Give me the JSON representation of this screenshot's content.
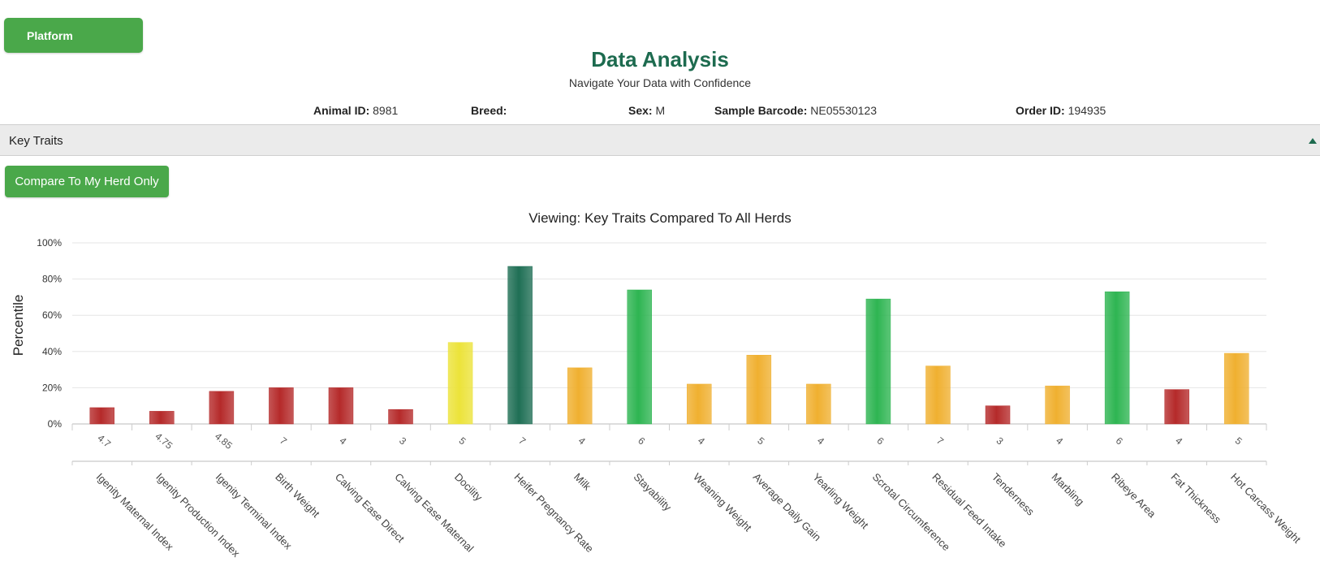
{
  "header": {
    "platform_label": "Platform",
    "title": "Data Analysis",
    "subtitle": "Navigate Your Data with Confidence"
  },
  "animal_info": {
    "animal_id_label": "Animal ID:",
    "animal_id": "8981",
    "breed_label": "Breed:",
    "breed": "",
    "sex_label": "Sex:",
    "sex": "M",
    "barcode_label": "Sample Barcode:",
    "barcode": "NE05530123",
    "order_id_label": "Order ID:",
    "order_id": "194935"
  },
  "section": {
    "label": "Key Traits",
    "collapse_icon": "triangle-up-icon"
  },
  "compare_button": "Compare To My Herd Only",
  "colors": {
    "brand_green": "#4aa84a",
    "title_green": "#1d6b4f",
    "bar_red": "#b52a2a",
    "bar_orange": "#f0b030",
    "bar_yellow": "#ece33a",
    "bar_green": "#2eb552",
    "bar_dark_green": "#1f6f55"
  },
  "chart_data": {
    "type": "bar",
    "title": "Viewing: Key Traits Compared To All Herds",
    "ylabel": "Percentile",
    "ylim": [
      0,
      100
    ],
    "yticks": [
      "0%",
      "20%",
      "40%",
      "60%",
      "80%",
      "100%"
    ],
    "grid": true,
    "categories": [
      "Igenity Maternal Index",
      "Igenity Production Index",
      "Igenity Terminal Index",
      "Birth Weight",
      "Calving Ease Direct",
      "Calving Ease Maternal",
      "Docility",
      "Heifer Pregnancy Rate",
      "Milk",
      "Stayability",
      "Weaning Weight",
      "Average Daily Gain",
      "Yearling Weight",
      "Scrotal Circumference",
      "Residual Feed Intake",
      "Tenderness",
      "Marbling",
      "Ribeye Area",
      "Fat Thickness",
      "Hot Carcass Weight"
    ],
    "scores": [
      "4.7",
      "4.75",
      "4.85",
      "7",
      "4",
      "3",
      "5",
      "7",
      "4",
      "6",
      "4",
      "5",
      "4",
      "6",
      "7",
      "3",
      "4",
      "6",
      "4",
      "5"
    ],
    "values": [
      9,
      7,
      18,
      20,
      20,
      8,
      45,
      87,
      31,
      74,
      22,
      38,
      22,
      69,
      32,
      10,
      21,
      73,
      19,
      39
    ],
    "bar_colors": [
      "red",
      "red",
      "red",
      "red",
      "red",
      "red",
      "yellow",
      "dark_green",
      "orange",
      "green",
      "orange",
      "orange",
      "orange",
      "green",
      "orange",
      "red",
      "orange",
      "green",
      "red",
      "orange"
    ]
  }
}
